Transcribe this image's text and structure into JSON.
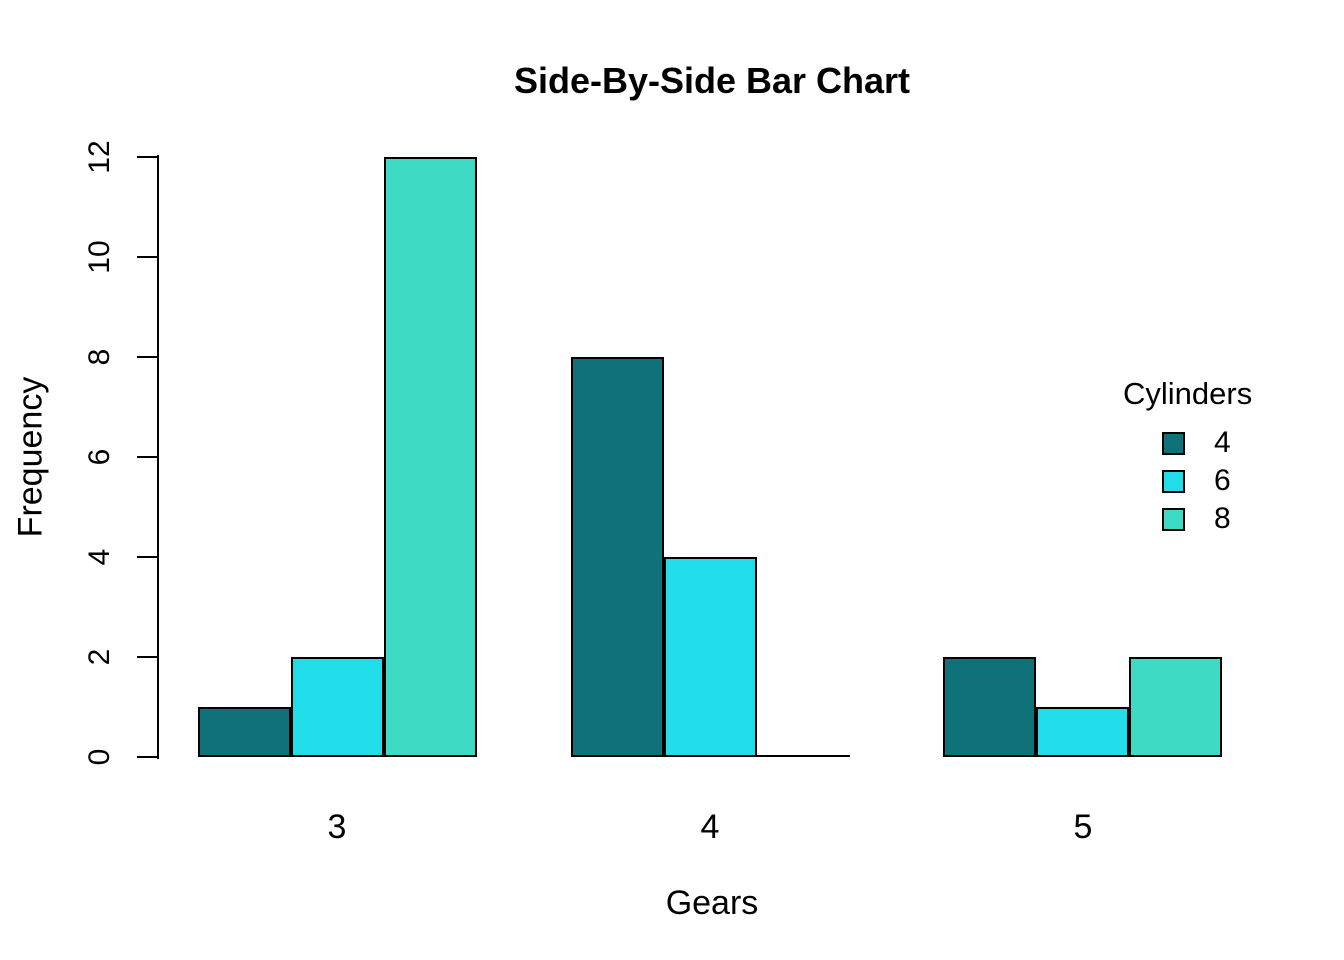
{
  "chart_data": {
    "type": "bar",
    "layout": "grouped-side-by-side",
    "title": "Side-By-Side Bar Chart",
    "xlabel": "Gears",
    "ylabel": "Frequency",
    "categories": [
      "3",
      "4",
      "5"
    ],
    "series": [
      {
        "name": "4",
        "color": "#0E7278",
        "values": [
          1,
          8,
          2
        ]
      },
      {
        "name": "6",
        "color": "#20DDE9",
        "values": [
          2,
          4,
          1
        ]
      },
      {
        "name": "8",
        "color": "#3EDAC3",
        "values": [
          12,
          0,
          2
        ]
      }
    ],
    "legend": {
      "title": "Cylinders",
      "position": "right",
      "entries": [
        "4",
        "6",
        "8"
      ]
    },
    "ylim": [
      0,
      12
    ],
    "yticks": [
      0,
      2,
      4,
      6,
      8,
      10,
      12
    ],
    "grid": false,
    "background_color": "#FFFFFF",
    "bar_border_color": "#000000",
    "text_color": "#000000"
  }
}
